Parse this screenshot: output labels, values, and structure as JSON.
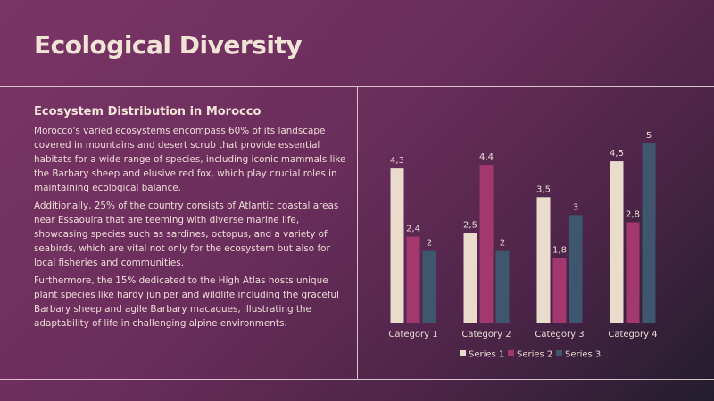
{
  "header": {
    "title": "Ecological Diversity"
  },
  "content": {
    "subtitle": "Ecosystem Distribution in Morocco",
    "paragraphs": [
      "Morocco's varied ecosystems encompass 60% of its landscape covered in mountains and desert scrub that provide essential habitats for a wide range of species, including iconic mammals like the Barbary sheep and elusive red fox, which play crucial roles in maintaining ecological balance.",
      "Additionally, 25% of the country consists of Atlantic coastal areas near Essaouira that are teeming with diverse marine life, showcasing species such as sardines, octopus, and a variety of seabirds, which are vital not only for the ecosystem but also for local fisheries and communities.",
      "Furthermore, the 15% dedicated to the High Atlas hosts unique plant species like hardy juniper and wildlife including the graceful Barbary sheep and agile Barbary macaques, illustrating the adaptability of life in challenging alpine environments."
    ]
  },
  "chart_data": {
    "type": "bar",
    "categories": [
      "Category 1",
      "Category 2",
      "Category 3",
      "Category 4"
    ],
    "series": [
      {
        "name": "Series 1",
        "color": "#e9dccd",
        "values": [
          4.3,
          2.5,
          3.5,
          4.5
        ],
        "value_labels": [
          "4,3",
          "2,5",
          "3,5",
          "4,5"
        ]
      },
      {
        "name": "Series 2",
        "color": "#a3386f",
        "values": [
          2.4,
          4.4,
          1.8,
          2.8
        ],
        "value_labels": [
          "2,4",
          "4,4",
          "1,8",
          "2,8"
        ]
      },
      {
        "name": "Series 3",
        "color": "#3f566f",
        "values": [
          2,
          2,
          3,
          5
        ]
      }
    ],
    "legend": "bottom"
  }
}
